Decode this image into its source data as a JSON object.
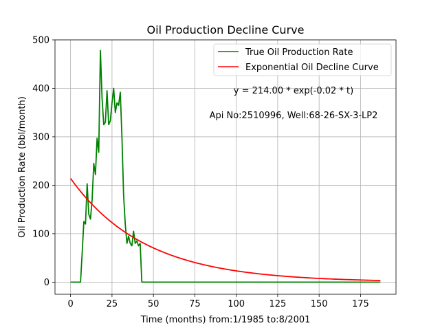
{
  "chart_data": {
    "type": "line",
    "title": "Oil Production Decline Curve",
    "xlabel": "Time (months) from:1/1985 to:8/2001",
    "ylabel": "Oil Production Rate (bbl/month)",
    "xlim": [
      -9.4,
      196.4
    ],
    "ylim": [
      -25,
      500
    ],
    "xticks": [
      0,
      25,
      50,
      75,
      100,
      125,
      150,
      175
    ],
    "yticks": [
      0,
      100,
      200,
      300,
      400,
      500
    ],
    "grid": true,
    "legend_position": "top-right",
    "annotations": [
      {
        "text": "y = 214.00 * exp(-0.02 * t)"
      },
      {
        "text": "Api No:2510996, Well:68-26-SX-3-LP2"
      }
    ],
    "series": [
      {
        "name": "True Oil Production Rate",
        "color": "#008000",
        "x": [
          0,
          1,
          2,
          3,
          4,
          5,
          6,
          7,
          8,
          9,
          10,
          11,
          12,
          13,
          14,
          15,
          16,
          17,
          18,
          19,
          20,
          21,
          22,
          23,
          24,
          25,
          26,
          27,
          28,
          29,
          30,
          31,
          32,
          33,
          34,
          35,
          36,
          37,
          38,
          39,
          40,
          41,
          42,
          43,
          44,
          60,
          80,
          100,
          120,
          140,
          160,
          187
        ],
        "y": [
          0,
          0,
          0,
          0,
          0,
          0,
          0,
          60,
          125,
          120,
          203,
          140,
          130,
          170,
          245,
          222,
          297,
          268,
          478,
          380,
          325,
          330,
          395,
          325,
          333,
          370,
          400,
          350,
          370,
          365,
          392,
          300,
          180,
          120,
          80,
          95,
          80,
          75,
          105,
          80,
          85,
          75,
          80,
          0,
          0,
          0,
          0,
          0,
          0,
          0,
          0,
          0
        ]
      },
      {
        "name": "Exponential Oil Decline Curve",
        "color": "#ff0000",
        "a": 214.0,
        "b": 0.02219,
        "x_range": [
          0,
          187
        ]
      }
    ]
  }
}
